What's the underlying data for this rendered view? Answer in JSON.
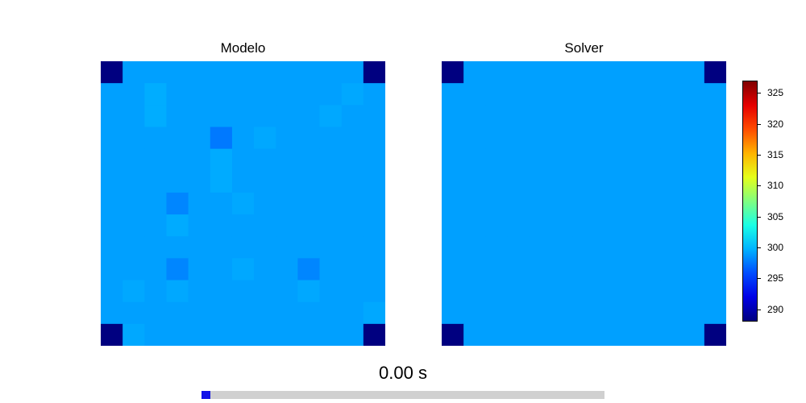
{
  "chart_data": [
    {
      "type": "heatmap",
      "title": "Modelo",
      "rows": 13,
      "cols": 13,
      "vmin": 288,
      "vmax": 327,
      "values": [
        [
          288,
          299,
          299,
          299,
          299,
          299,
          299,
          299,
          299,
          299,
          299,
          299,
          288
        ],
        [
          299,
          299,
          299.5,
          299,
          299,
          299,
          299,
          299,
          299,
          299,
          299,
          299.3,
          299
        ],
        [
          299,
          299,
          299.5,
          299,
          299,
          299,
          299,
          299,
          299,
          299,
          299.3,
          299,
          299
        ],
        [
          299,
          299,
          299,
          299,
          299,
          297.5,
          299,
          299.3,
          299,
          299,
          299,
          299,
          299
        ],
        [
          299,
          299,
          299,
          299,
          299,
          299.4,
          299,
          299,
          299,
          299,
          299,
          299,
          299
        ],
        [
          299,
          299,
          299,
          299,
          299,
          299.4,
          299,
          299,
          299,
          299,
          299,
          299,
          299
        ],
        [
          299,
          299,
          299,
          298,
          299,
          299,
          299.3,
          299,
          299,
          299,
          299,
          299,
          299
        ],
        [
          299,
          299,
          299,
          299.4,
          299,
          299,
          299,
          299,
          299,
          299,
          299,
          299,
          299
        ],
        [
          299,
          299,
          299,
          299,
          299,
          299,
          299,
          299,
          299,
          299,
          299,
          299,
          299
        ],
        [
          299,
          299,
          299,
          298,
          299,
          299,
          299.3,
          299,
          299,
          298,
          299,
          299,
          299
        ],
        [
          299,
          299.3,
          299,
          299.3,
          299,
          299,
          299,
          299,
          299,
          299.3,
          299,
          299,
          299
        ],
        [
          299,
          299,
          299,
          299,
          299,
          299,
          299,
          299,
          299,
          299,
          299,
          299,
          299.3
        ],
        [
          288,
          299.3,
          299,
          299,
          299,
          299,
          299,
          299,
          299,
          299,
          299,
          299,
          288
        ]
      ]
    },
    {
      "type": "heatmap",
      "title": "Solver",
      "rows": 13,
      "cols": 13,
      "vmin": 288,
      "vmax": 327,
      "values": [
        [
          288,
          299,
          299,
          299,
          299,
          299,
          299,
          299,
          299,
          299,
          299,
          299,
          288
        ],
        [
          299,
          299,
          299,
          299,
          299,
          299,
          299,
          299,
          299,
          299,
          299,
          299,
          299
        ],
        [
          299,
          299,
          299,
          299,
          299,
          299,
          299,
          299,
          299,
          299,
          299,
          299,
          299
        ],
        [
          299,
          299,
          299,
          299,
          299,
          299,
          299,
          299,
          299,
          299,
          299,
          299,
          299
        ],
        [
          299,
          299,
          299,
          299,
          299,
          299,
          299,
          299,
          299,
          299,
          299,
          299,
          299
        ],
        [
          299,
          299,
          299,
          299,
          299,
          299,
          299,
          299,
          299,
          299,
          299,
          299,
          299
        ],
        [
          299,
          299,
          299,
          299,
          299,
          299,
          299,
          299,
          299,
          299,
          299,
          299,
          299
        ],
        [
          299,
          299,
          299,
          299,
          299,
          299,
          299,
          299,
          299,
          299,
          299,
          299,
          299
        ],
        [
          299,
          299,
          299,
          299,
          299,
          299,
          299,
          299,
          299,
          299,
          299,
          299,
          299
        ],
        [
          299,
          299,
          299,
          299,
          299,
          299,
          299,
          299,
          299,
          299,
          299,
          299,
          299
        ],
        [
          299,
          299,
          299,
          299,
          299,
          299,
          299,
          299,
          299,
          299,
          299,
          299,
          299
        ],
        [
          299,
          299,
          299,
          299,
          299,
          299,
          299,
          299,
          299,
          299,
          299,
          299,
          299
        ],
        [
          288,
          299,
          299,
          299,
          299,
          299,
          299,
          299,
          299,
          299,
          299,
          299,
          288
        ]
      ]
    }
  ],
  "colorbar": {
    "colormap": "jet",
    "min": 288,
    "max": 327,
    "ticks": [
      "290",
      "295",
      "300",
      "305",
      "310",
      "315",
      "320",
      "325"
    ]
  },
  "time": {
    "label": "0.00 s",
    "progress": 0.02
  },
  "colors": {
    "progress_track": "#d0d0d0",
    "progress_fill": "#1010e8"
  }
}
